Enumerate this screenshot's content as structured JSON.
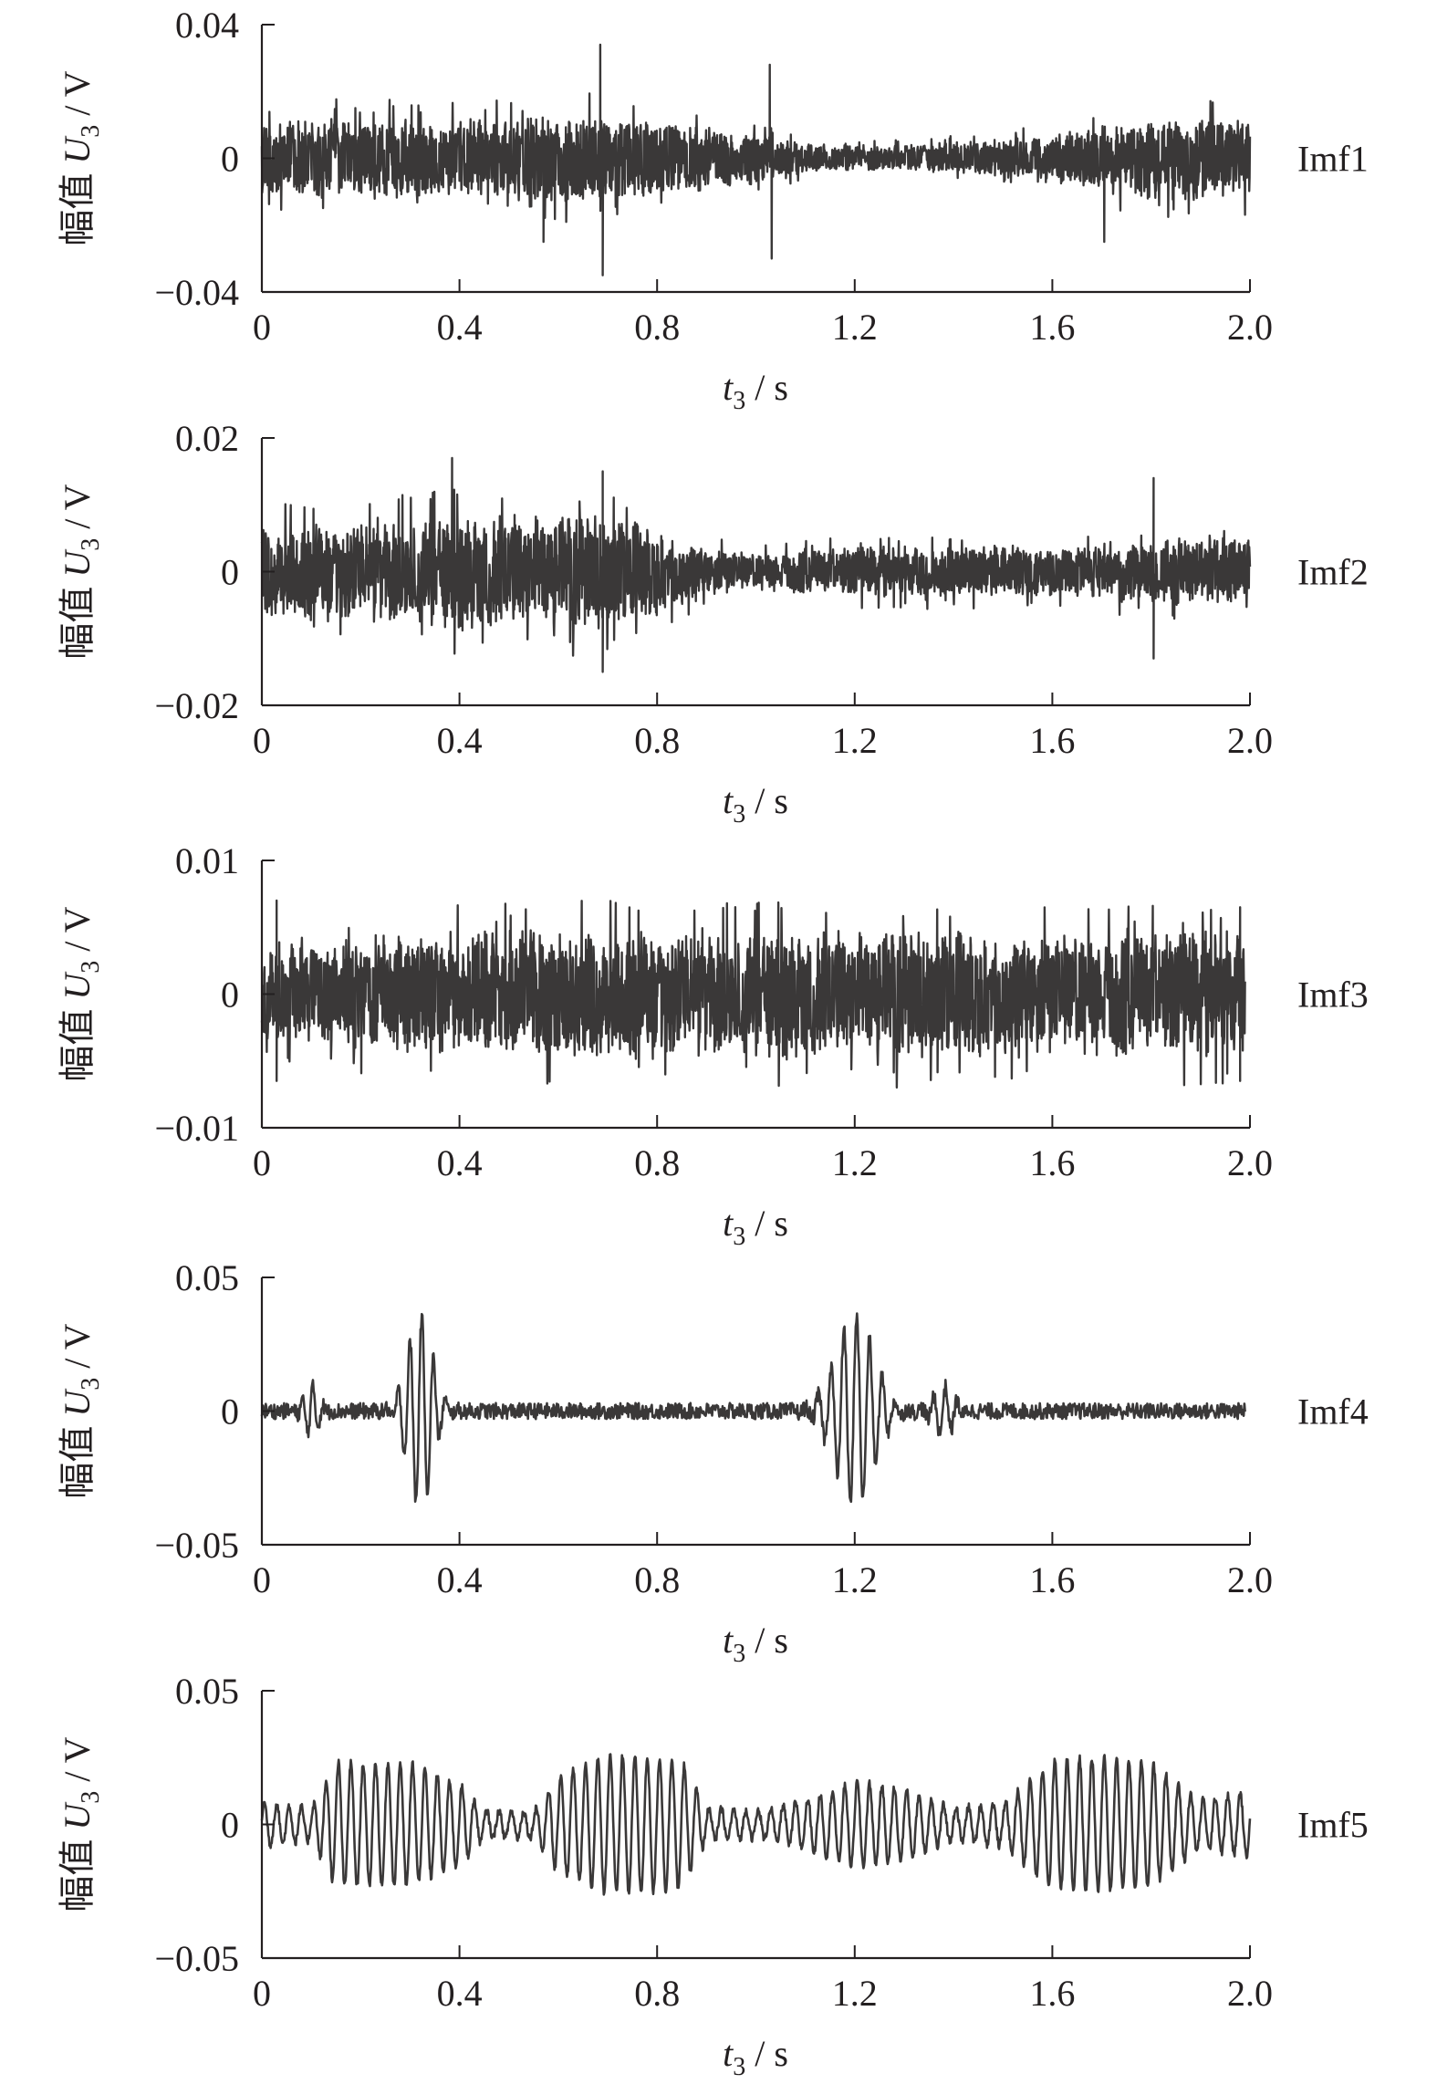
{
  "colors": {
    "signal": "#3a3838",
    "axis": "#231f20",
    "background": "#ffffff"
  },
  "charts": [
    {
      "type": "line",
      "label": "Imf1",
      "xlabel_var": "t",
      "xlabel_sub": "3",
      "xlabel_unit": " / s",
      "ylabel_prefix": "幅值 ",
      "ylabel_var": "U",
      "ylabel_sub": "3",
      "ylabel_unit": " / V",
      "xticks": [
        "0",
        "0.4",
        "0.8",
        "1.2",
        "1.6",
        "2.0"
      ],
      "yticks": [
        "0.04",
        "0",
        "−0.04"
      ],
      "xlim": [
        0,
        2.0
      ],
      "ylim": [
        -0.04,
        0.04
      ]
    },
    {
      "type": "line",
      "label": "Imf2",
      "xlabel_var": "t",
      "xlabel_sub": "3",
      "xlabel_unit": " / s",
      "ylabel_prefix": "幅值 ",
      "ylabel_var": "U",
      "ylabel_sub": "3",
      "ylabel_unit": " / V",
      "xticks": [
        "0",
        "0.4",
        "0.8",
        "1.2",
        "1.6",
        "2.0"
      ],
      "yticks": [
        "0.02",
        "0",
        "−0.02"
      ],
      "xlim": [
        0,
        2.0
      ],
      "ylim": [
        -0.02,
        0.02
      ]
    },
    {
      "type": "line",
      "label": "Imf3",
      "xlabel_var": "t",
      "xlabel_sub": "3",
      "xlabel_unit": " / s",
      "ylabel_prefix": "幅值 ",
      "ylabel_var": "U",
      "ylabel_sub": "3",
      "ylabel_unit": " / V",
      "xticks": [
        "0",
        "0.4",
        "0.8",
        "1.2",
        "1.6",
        "2.0"
      ],
      "yticks": [
        "0.01",
        "0",
        "−0.01"
      ],
      "xlim": [
        0,
        2.0
      ],
      "ylim": [
        -0.01,
        0.01
      ]
    },
    {
      "type": "line",
      "label": "Imf4",
      "xlabel_var": "t",
      "xlabel_sub": "3",
      "xlabel_unit": " / s",
      "ylabel_prefix": "幅值 ",
      "ylabel_var": "U",
      "ylabel_sub": "3",
      "ylabel_unit": " / V",
      "xticks": [
        "0",
        "0.4",
        "0.8",
        "1.2",
        "1.6",
        "2.0"
      ],
      "yticks": [
        "0.05",
        "0",
        "−0.05"
      ],
      "xlim": [
        0,
        2.0
      ],
      "ylim": [
        -0.05,
        0.05
      ]
    },
    {
      "type": "line",
      "label": "Imf5",
      "xlabel_var": "t",
      "xlabel_sub": "3",
      "xlabel_unit": " / s",
      "ylabel_prefix": "幅值 ",
      "ylabel_var": "U",
      "ylabel_sub": "3",
      "ylabel_unit": " / V",
      "xticks": [
        "0",
        "0.4",
        "0.8",
        "1.2",
        "1.6",
        "2.0"
      ],
      "yticks": [
        "0.05",
        "0",
        "−0.05"
      ],
      "xlim": [
        0,
        2.0
      ],
      "ylim": [
        -0.05,
        0.05
      ]
    }
  ],
  "chart_data": [
    {
      "type": "line",
      "name": "Imf1",
      "x_range": [
        0,
        2.0
      ],
      "ylim": [
        -0.04,
        0.04
      ],
      "grid": false,
      "envelope": {
        "x": [
          0,
          0.2,
          0.4,
          0.6,
          0.68,
          0.8,
          1.0,
          1.03,
          1.1,
          1.2,
          1.3,
          1.4,
          1.5,
          1.6,
          1.7,
          1.8,
          1.9,
          2.0
        ],
        "amplitude": [
          0.012,
          0.013,
          0.012,
          0.014,
          0.014,
          0.012,
          0.008,
          0.007,
          0.005,
          0.004,
          0.004,
          0.005,
          0.006,
          0.008,
          0.011,
          0.013,
          0.013,
          0.012
        ]
      },
      "spikes": [
        {
          "x": 0.685,
          "y": 0.034
        },
        {
          "x": 0.69,
          "y": -0.035
        },
        {
          "x": 1.028,
          "y": 0.028
        },
        {
          "x": 1.032,
          "y": -0.03
        },
        {
          "x": 0.57,
          "y": -0.025
        },
        {
          "x": 1.705,
          "y": -0.025
        }
      ]
    },
    {
      "type": "line",
      "name": "Imf2",
      "x_range": [
        0,
        2.0
      ],
      "ylim": [
        -0.02,
        0.02
      ],
      "grid": false,
      "envelope": {
        "x": [
          0,
          0.2,
          0.4,
          0.6,
          0.7,
          0.8,
          0.9,
          1.0,
          1.2,
          1.4,
          1.6,
          1.8,
          2.0
        ],
        "amplitude": [
          0.007,
          0.008,
          0.009,
          0.009,
          0.009,
          0.007,
          0.004,
          0.003,
          0.004,
          0.004,
          0.004,
          0.005,
          0.006
        ]
      },
      "spikes": [
        {
          "x": 0.385,
          "y": 0.017
        },
        {
          "x": 0.69,
          "y": 0.015
        },
        {
          "x": 0.69,
          "y": -0.015
        },
        {
          "x": 1.805,
          "y": 0.014
        },
        {
          "x": 1.805,
          "y": -0.013
        }
      ]
    },
    {
      "type": "line",
      "name": "Imf3",
      "x_range": [
        0,
        1.99
      ],
      "ylim": [
        -0.01,
        0.01
      ],
      "grid": false,
      "envelope": {
        "x": [
          0,
          0.1,
          0.3,
          0.5,
          0.7,
          0.9,
          1.1,
          1.3,
          1.5,
          1.7,
          1.9,
          1.99
        ],
        "amplitude": [
          0.004,
          0.004,
          0.005,
          0.005,
          0.005,
          0.005,
          0.005,
          0.005,
          0.005,
          0.005,
          0.005,
          0.005
        ]
      },
      "spikes": [
        {
          "x": 0.03,
          "y": 0.007
        },
        {
          "x": 0.03,
          "y": -0.0065
        },
        {
          "x": 1.98,
          "y": 0.0065
        },
        {
          "x": 1.98,
          "y": -0.0065
        }
      ]
    },
    {
      "type": "line",
      "name": "Imf4",
      "x_range": [
        0,
        1.99
      ],
      "ylim": [
        -0.05,
        0.05
      ],
      "grid": false,
      "baseline_amplitude": 0.003,
      "bursts": [
        {
          "x": 0.1,
          "amplitude": 0.009,
          "width": 0.02,
          "period": 0.022
        },
        {
          "x": 0.32,
          "amplitude": 0.036,
          "width": 0.035,
          "period": 0.024
        },
        {
          "x": 1.2,
          "amplitude": 0.036,
          "width": 0.055,
          "period": 0.026
        },
        {
          "x": 1.38,
          "amplitude": 0.009,
          "width": 0.03,
          "period": 0.024
        }
      ]
    },
    {
      "type": "line",
      "name": "Imf5",
      "x_range": [
        0,
        2.0
      ],
      "ylim": [
        -0.05,
        0.05
      ],
      "grid": false,
      "envelope": {
        "x": [
          0,
          0.1,
          0.15,
          0.3,
          0.4,
          0.45,
          0.55,
          0.6,
          0.7,
          0.8,
          0.85,
          0.9,
          1.0,
          1.1,
          1.2,
          1.3,
          1.4,
          1.5,
          1.6,
          1.7,
          1.8,
          1.9,
          2.0
        ],
        "amplitude": [
          0.008,
          0.006,
          0.023,
          0.023,
          0.015,
          0.005,
          0.005,
          0.018,
          0.026,
          0.025,
          0.024,
          0.006,
          0.005,
          0.009,
          0.016,
          0.013,
          0.006,
          0.008,
          0.024,
          0.025,
          0.023,
          0.009,
          0.012
        ]
      },
      "period": 0.025
    }
  ]
}
